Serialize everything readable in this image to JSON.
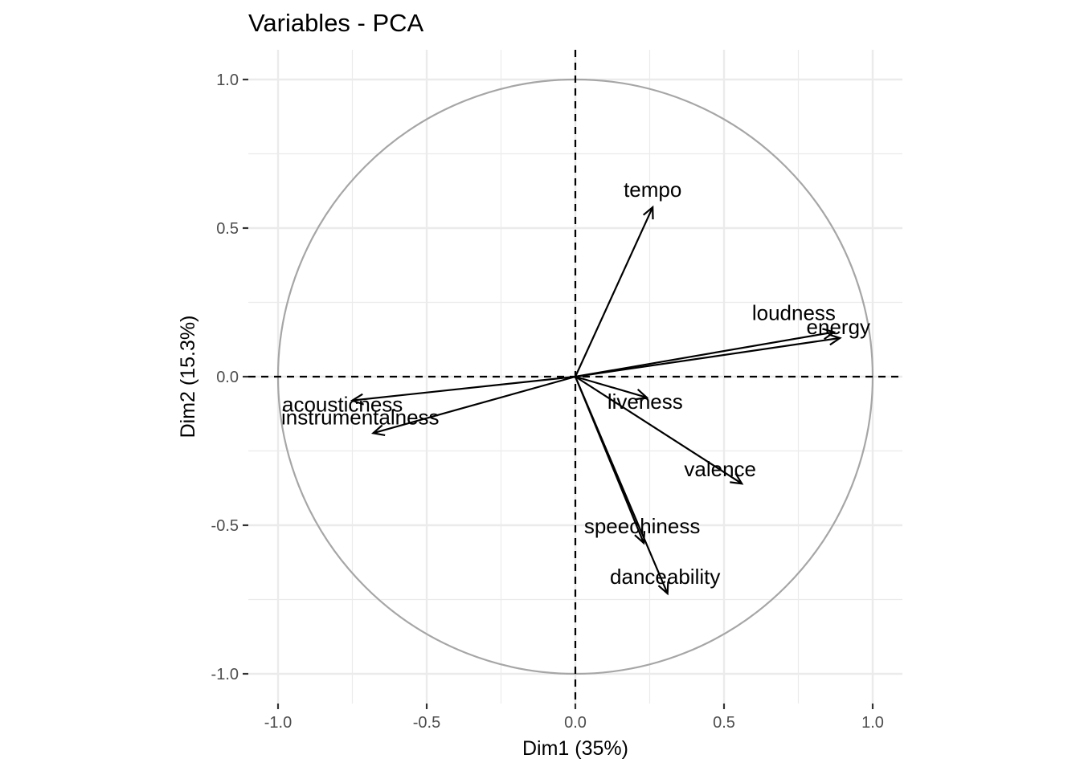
{
  "chart_data": {
    "type": "scatter",
    "subtype": "pca-variable-correlation-circle",
    "title": "Variables - PCA",
    "xlabel": "Dim1 (35%)",
    "ylabel": "Dim2 (15.3%)",
    "xlim": [
      -1.1,
      1.1
    ],
    "ylim": [
      -1.1,
      1.1
    ],
    "x_ticks": [
      -1.0,
      -0.5,
      0.0,
      0.5,
      1.0
    ],
    "y_ticks": [
      -1.0,
      -0.5,
      0.0,
      0.5,
      1.0
    ],
    "x_tick_labels": [
      "-1.0",
      "-0.5",
      "0.0",
      "0.5",
      "1.0"
    ],
    "y_tick_labels": [
      "-1.0",
      "-0.5",
      "0.0",
      "0.5",
      "1.0"
    ],
    "grid": true,
    "unit_circle": true,
    "reference_lines": {
      "x": 0,
      "y": 0,
      "style": "dashed"
    },
    "variables": [
      {
        "name": "tempo",
        "x": 0.26,
        "y": 0.57
      },
      {
        "name": "loudness",
        "x": 0.87,
        "y": 0.15
      },
      {
        "name": "energy",
        "x": 0.89,
        "y": 0.13
      },
      {
        "name": "liveness",
        "x": 0.24,
        "y": -0.07
      },
      {
        "name": "valence",
        "x": 0.56,
        "y": -0.36
      },
      {
        "name": "speechiness",
        "x": 0.23,
        "y": -0.56
      },
      {
        "name": "danceability",
        "x": 0.31,
        "y": -0.73
      },
      {
        "name": "acousticness",
        "x": -0.75,
        "y": -0.08
      },
      {
        "name": "instrumentalness",
        "x": -0.68,
        "y": -0.19
      }
    ],
    "colors": {
      "arrow": "#000000",
      "circle": "#a6a6a6",
      "grid": "#ebebeb",
      "reference": "#000000"
    }
  }
}
